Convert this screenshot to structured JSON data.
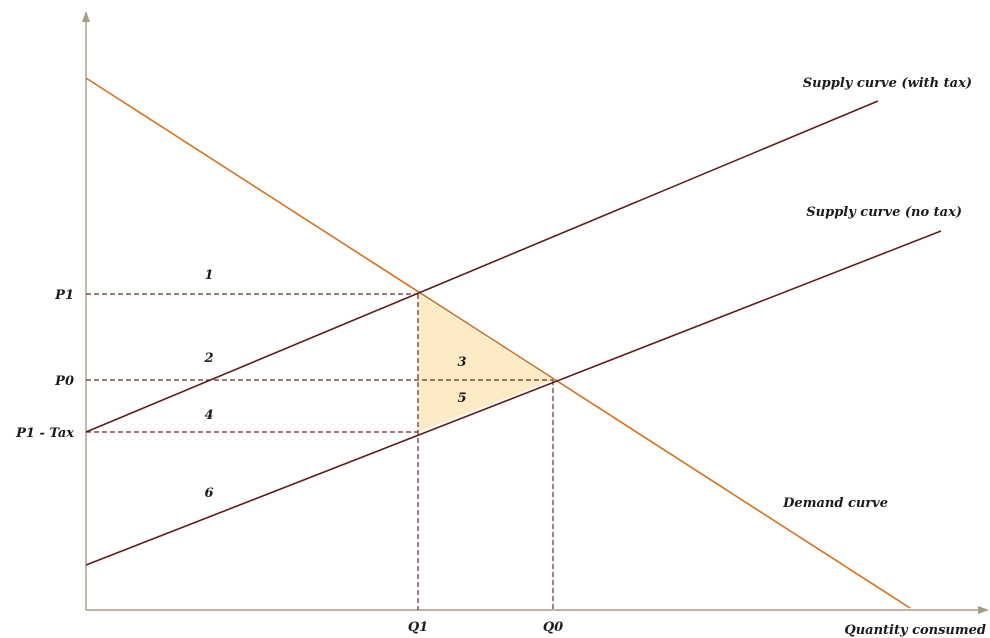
{
  "chart_data": {
    "type": "line",
    "title": "",
    "xlabel": "Quantity consumed",
    "ylabel": "",
    "x_ticks": [
      "Q1",
      "Q0"
    ],
    "y_ticks": [
      "P1",
      "P0",
      "P1 - Tax"
    ],
    "curves": [
      {
        "name": "Demand curve",
        "color": "#d2741e"
      },
      {
        "name": "Supply curve (no tax)",
        "color": "#5e1e1e"
      },
      {
        "name": "Supply curve (with tax)",
        "color": "#5e1e1e"
      }
    ],
    "regions": [
      "1",
      "2",
      "3",
      "4",
      "5",
      "6"
    ],
    "deadweight_fill": "#fdebc6"
  },
  "labels": {
    "p1": "P1",
    "p0": "P0",
    "p1_tax": "P1 - Tax",
    "q1": "Q1",
    "q0": "Q0",
    "x_axis": "Quantity consumed",
    "demand": "Demand curve",
    "supply_no_tax": "Supply curve (no tax)",
    "supply_with_tax": "Supply curve (with tax)",
    "r1": "1",
    "r2": "2",
    "r3": "3",
    "r4": "4",
    "r5": "5",
    "r6": "6"
  }
}
